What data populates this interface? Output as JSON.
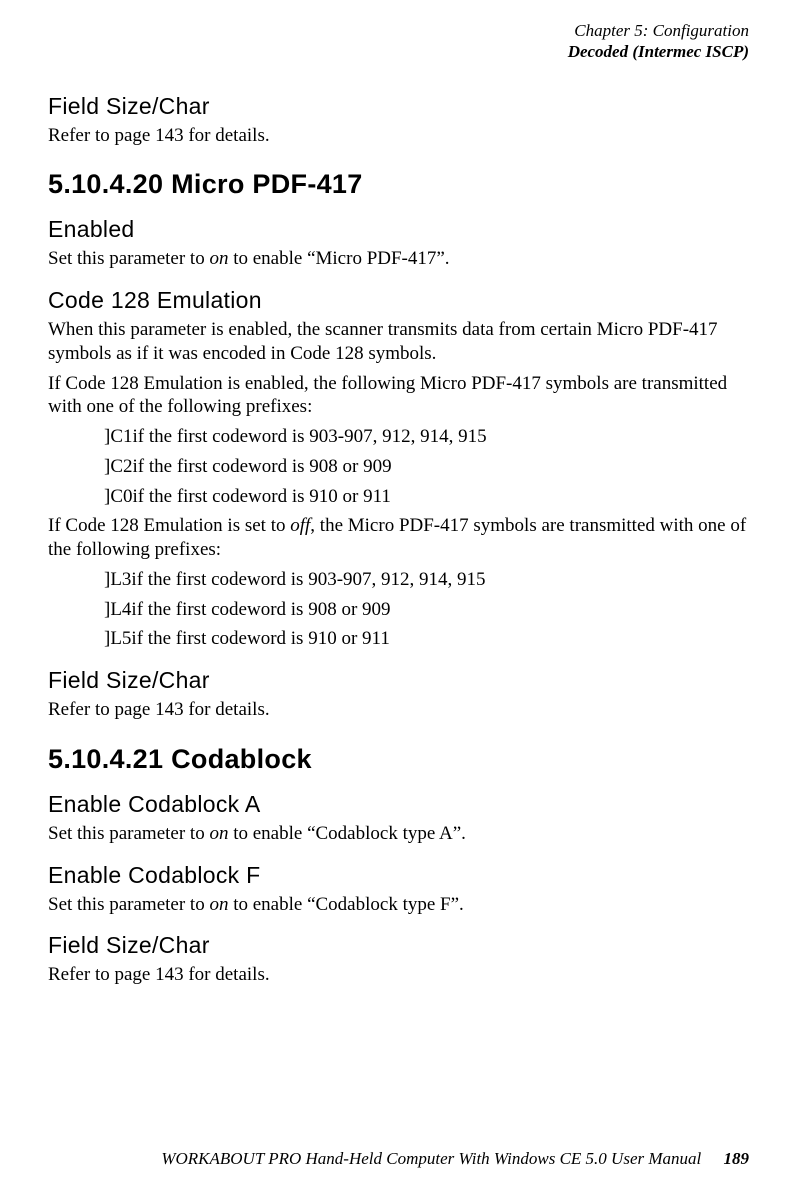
{
  "header": {
    "chapter": "Chapter 5: Configuration",
    "section": "Decoded (Intermec ISCP)"
  },
  "sections": {
    "fieldSizeChar1": {
      "title": "Field Size/Char",
      "body": "Refer to page 143 for details."
    },
    "microPdf": {
      "title": "5.10.4.20  Micro PDF-417",
      "enabled_title": "Enabled",
      "enabled_body_pre": "Set this parameter to ",
      "enabled_body_em": "on",
      "enabled_body_post": " to enable “Micro PDF-417”.",
      "code128_title": "Code 128 Emulation",
      "code128_p1": "When this parameter is enabled, the scanner transmits data from certain Micro PDF-417 symbols as if it was encoded in Code 128 symbols.",
      "code128_p2": "If Code 128 Emulation is enabled, the following Micro PDF-417 symbols are transmitted with one of the following prefixes:",
      "prefixes_on": [
        "]C1if the first codeword is 903-907, 912, 914, 915",
        "]C2if the first codeword is 908 or 909",
        "]C0if the first codeword is 910 or 911"
      ],
      "code128_p3_pre": "If Code 128 Emulation is set to ",
      "code128_p3_em": "off",
      "code128_p3_post": ", the Micro PDF-417 symbols are transmitted with one of the following prefixes:",
      "prefixes_off": [
        "]L3if the first codeword is 903-907, 912, 914, 915",
        "]L4if the first codeword is 908 or 909",
        "]L5if the first codeword is 910 or 911"
      ]
    },
    "fieldSizeChar2": {
      "title": "Field Size/Char",
      "body": "Refer to page 143 for details."
    },
    "codablock": {
      "title": "5.10.4.21  Codablock",
      "a_title": "Enable Codablock A",
      "a_pre": "Set this parameter to ",
      "a_em": "on",
      "a_post": " to enable “Codablock type A”.",
      "f_title": "Enable Codablock F",
      "f_pre": "Set this parameter to ",
      "f_em": "on",
      "f_post": " to enable “Codablock type F”."
    },
    "fieldSizeChar3": {
      "title": "Field Size/Char",
      "body": "Refer to page 143 for details."
    }
  },
  "footer": {
    "text": "WORKABOUT PRO Hand-Held Computer With Windows CE 5.0 User Manual",
    "page": "189"
  }
}
